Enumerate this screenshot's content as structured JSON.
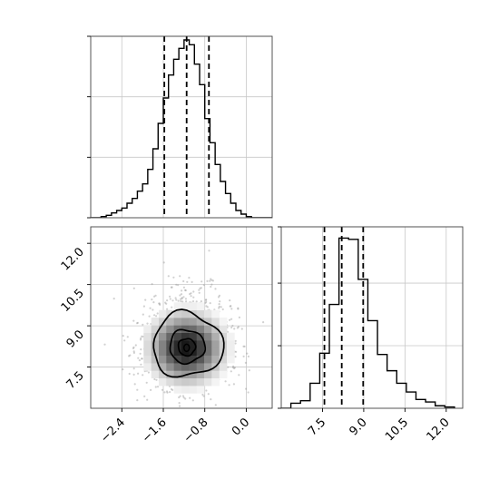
{
  "chart_data": {
    "type": "corner",
    "grid": true,
    "panels": [
      {
        "panel": "marginal-x",
        "type": "histogram",
        "bin_edges": [
          -3.0,
          -2.9,
          -2.8,
          -2.7,
          -2.6,
          -2.5,
          -2.4,
          -2.3,
          -2.2,
          -2.1,
          -2.0,
          -1.9,
          -1.8,
          -1.7,
          -1.6,
          -1.5,
          -1.4,
          -1.3,
          -1.2,
          -1.1,
          -1.0,
          -0.9,
          -0.8,
          -0.7,
          -0.6,
          -0.5,
          -0.4,
          -0.3,
          -0.2,
          -0.1,
          0.0,
          0.1,
          0.2,
          0.3,
          0.4,
          0.5
        ],
        "counts": [
          0,
          0,
          1,
          2,
          4,
          6,
          8,
          12,
          16,
          22,
          28,
          40,
          57,
          78,
          99,
          118,
          131,
          140,
          147,
          143,
          127,
          110,
          82,
          62,
          44,
          30,
          20,
          12,
          6,
          3,
          1,
          0,
          0,
          0,
          0
        ],
        "ylim": [
          0,
          150
        ],
        "quantile_lines": [
          -1.58,
          -1.15,
          -0.72
        ],
        "xlim": [
          -3.0,
          0.5
        ]
      },
      {
        "panel": "marginal-y",
        "type": "histogram",
        "bin_edges": [
          6.0,
          6.35,
          6.7,
          7.05,
          7.4,
          7.75,
          8.1,
          8.45,
          8.8,
          9.15,
          9.5,
          9.85,
          10.2,
          10.55,
          10.9,
          11.25,
          11.6,
          11.95,
          12.3
        ],
        "counts": [
          0,
          4,
          6,
          20,
          44,
          83,
          136,
          135,
          103,
          70,
          43,
          30,
          20,
          13,
          7,
          5,
          2,
          1
        ],
        "ylim": [
          0,
          145
        ],
        "quantile_lines": [
          7.57,
          8.2,
          8.98
        ],
        "xlim": [
          6.0,
          12.6
        ],
        "xticks": [
          7.5,
          9.0,
          10.5,
          12.0
        ],
        "xtick_labels": [
          "7.5",
          "9.0",
          "10.5",
          "12.0"
        ]
      },
      {
        "panel": "joint",
        "type": "2d-histogram-contour",
        "xlim": [
          -3.0,
          0.5
        ],
        "ylim": [
          6.0,
          12.6
        ],
        "xticks": [
          -2.4,
          -1.6,
          -0.8,
          0.0
        ],
        "xtick_labels": [
          "−2.4",
          "−1.6",
          "−0.8",
          "0.0"
        ],
        "yticks": [
          7.5,
          9.0,
          10.5,
          12.0
        ],
        "ytick_labels": [
          "7.5",
          "9.0",
          "10.5",
          "12.0"
        ],
        "center": [
          -1.15,
          8.2
        ],
        "contour_levels": [
          "inner",
          "middle",
          "outer"
        ]
      }
    ]
  }
}
